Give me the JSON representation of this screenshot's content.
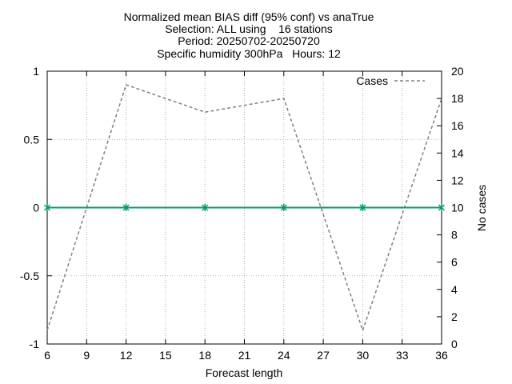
{
  "chart_data": {
    "type": "line",
    "title_lines": [
      "Normalized mean BIAS diff (95% conf) vs anaTrue",
      "Selection: ALL using    16 stations",
      "Period: 20250702-20250720",
      "Specific humidity 300hPa   Hours: 12"
    ],
    "xlabel": "Forecast length",
    "ylabel": "",
    "y2label": "No cases",
    "x_ticks": [
      6,
      9,
      12,
      15,
      18,
      21,
      24,
      27,
      30,
      33,
      36
    ],
    "y_ticks": [
      1,
      0.5,
      0,
      -0.5,
      -1
    ],
    "y2_ticks": [
      20,
      18,
      16,
      14,
      12,
      10,
      8,
      6,
      4,
      2,
      0
    ],
    "xlim": [
      6,
      36
    ],
    "ylim": [
      -1,
      1
    ],
    "y2lim": [
      0,
      20
    ],
    "grid": true,
    "legend_position": "top-right",
    "series": [
      {
        "name": "",
        "axis": "y",
        "color": "#009e73",
        "marker": "x",
        "x": [
          6,
          12,
          18,
          24,
          30,
          36
        ],
        "values": [
          0,
          0,
          0,
          0,
          0,
          0
        ]
      },
      {
        "name": "Cases",
        "axis": "y2",
        "color": "#808080",
        "dashed": true,
        "x": [
          6,
          12,
          18,
          24,
          30,
          36
        ],
        "values": [
          1,
          19,
          17,
          18,
          1,
          18
        ]
      }
    ]
  }
}
